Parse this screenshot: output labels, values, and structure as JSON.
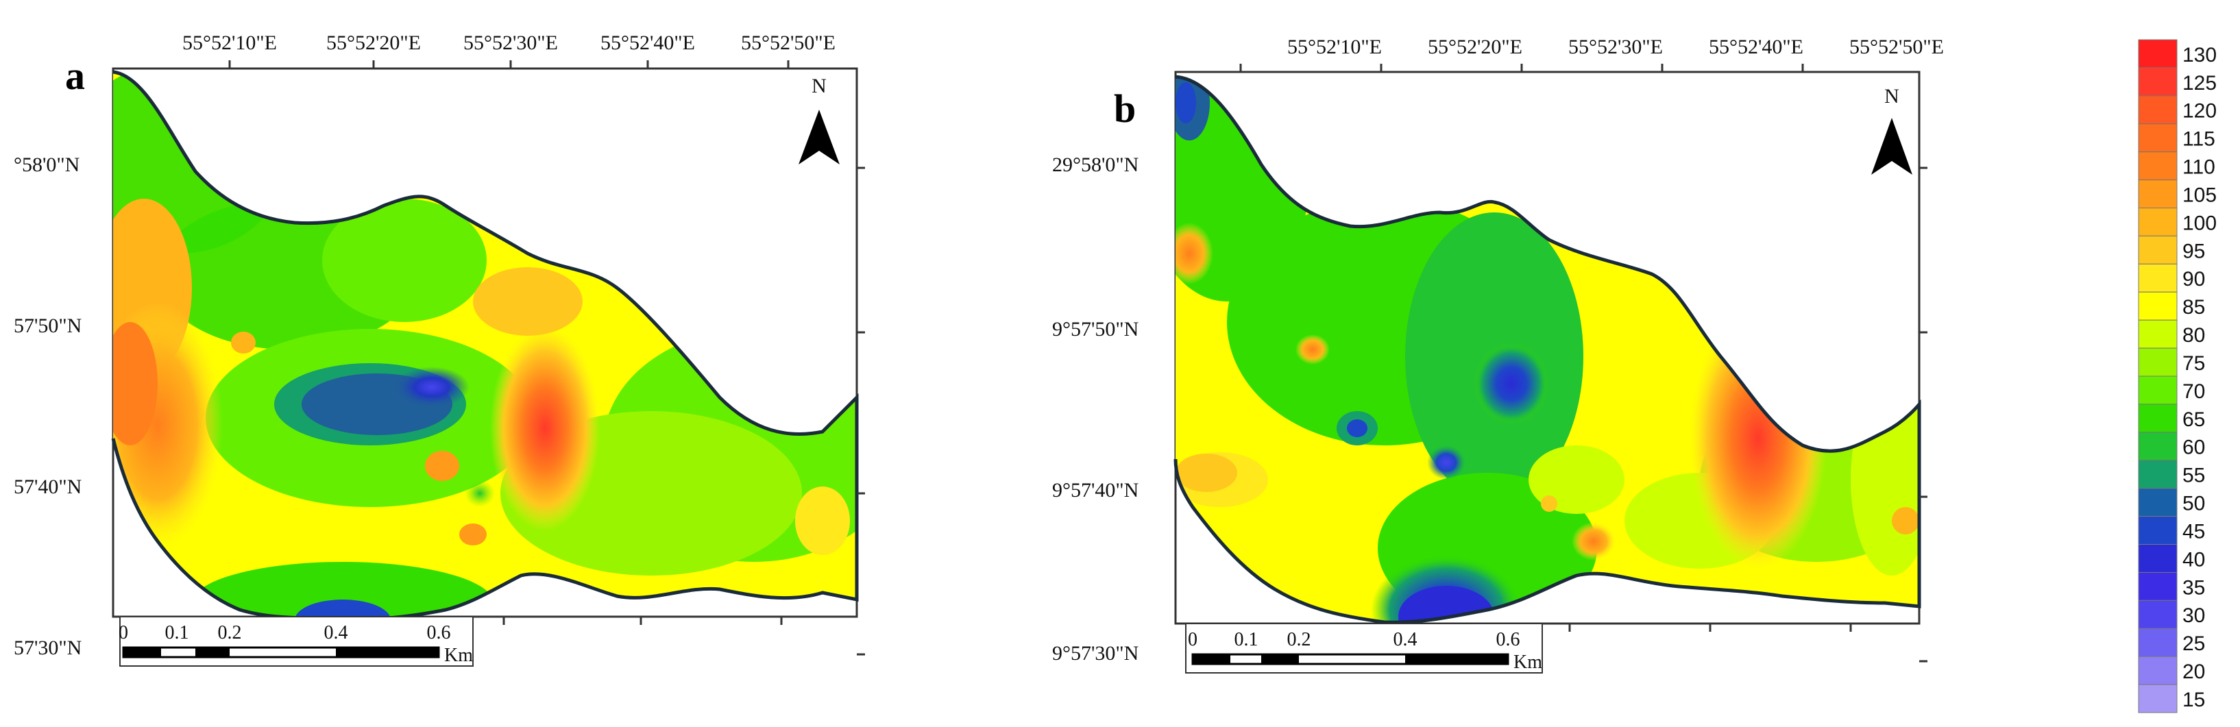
{
  "figure": {
    "panels": [
      {
        "id": "a",
        "label": "a",
        "lon_ticks": [
          "55°52'10\"E",
          "55°52'20\"E",
          "55°52'30\"E",
          "55°52'40\"E",
          "55°52'50\"E"
        ],
        "lat_ticks": [
          "°58'0\"N",
          "57'50\"N",
          "57'40\"N",
          "57'30\"N"
        ],
        "north_label": "N",
        "scale": {
          "ticks": [
            "0",
            "0.1",
            "0.2",
            "0.4",
            "0.6"
          ],
          "unit": "Km"
        }
      },
      {
        "id": "b",
        "label": "b",
        "lon_ticks": [
          "55°52'10\"E",
          "55°52'20\"E",
          "55°52'30\"E",
          "55°52'40\"E",
          "55°52'50\"E"
        ],
        "lat_ticks": [
          "29°58'0\"N",
          "9°57'50\"N",
          "9°57'40\"N",
          "9°57'30\"N"
        ],
        "north_label": "N",
        "scale": {
          "ticks": [
            "0",
            "0.1",
            "0.2",
            "0.4",
            "0.6"
          ],
          "unit": "Km"
        }
      }
    ],
    "legend": {
      "values": [
        "130",
        "125",
        "120",
        "115",
        "110",
        "105",
        "100",
        "95",
        "90",
        "85",
        "80",
        "75",
        "70",
        "65",
        "60",
        "55",
        "50",
        "45",
        "40",
        "35",
        "30",
        "25",
        "20",
        "15"
      ],
      "colors": [
        "#ff1f1f",
        "#ff3a2a",
        "#ff5a22",
        "#ff6e1e",
        "#ff7f1c",
        "#ff9a1a",
        "#ffb41a",
        "#ffc81e",
        "#ffe81c",
        "#ffff00",
        "#ccff00",
        "#99f400",
        "#66ee00",
        "#33dd00",
        "#22c431",
        "#16a06a",
        "#1860a8",
        "#1e46c8",
        "#2a2ad6",
        "#3c2ce6",
        "#5044ee",
        "#6e62f2",
        "#8e80f4",
        "#a898f6"
      ]
    }
  }
}
